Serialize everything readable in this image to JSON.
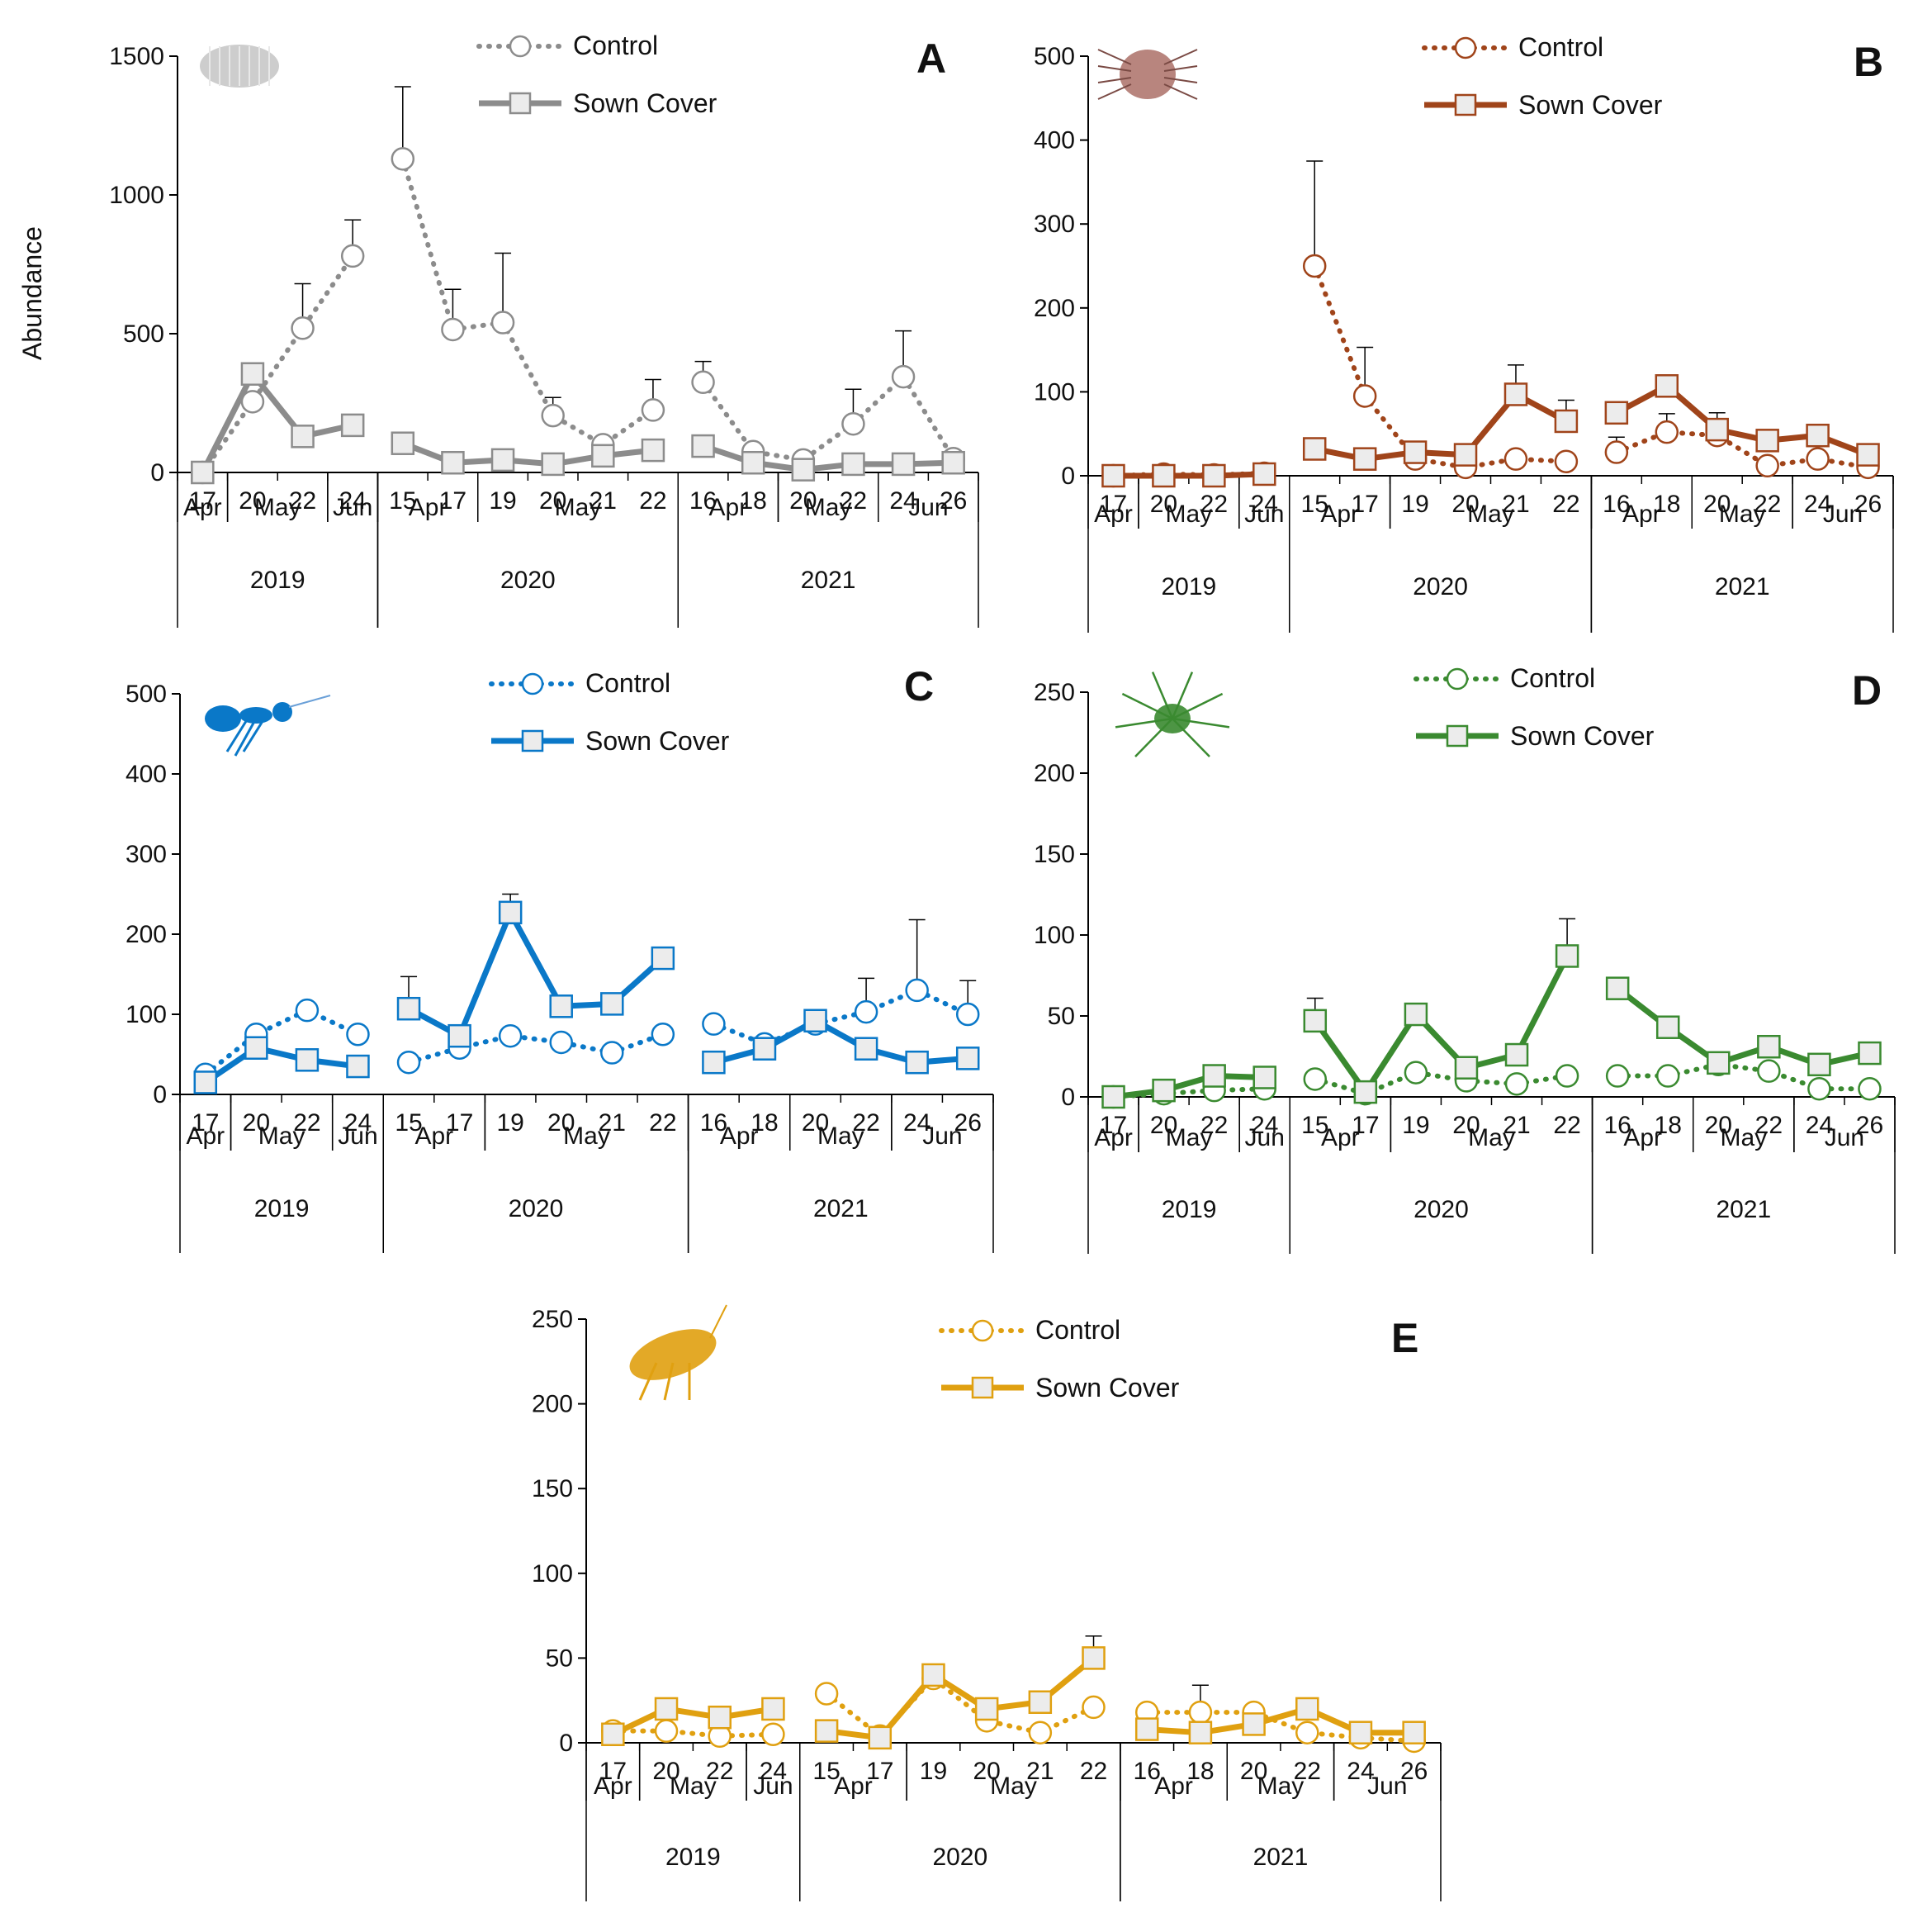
{
  "figure": {
    "ylabel": "Abundance",
    "legend": {
      "control": "Control",
      "sown": "Sown Cover"
    },
    "x_days": [
      "17",
      "20",
      "22",
      "24",
      "15",
      "17",
      "19",
      "20",
      "21",
      "22",
      "16",
      "18",
      "20",
      "22",
      "24",
      "26"
    ],
    "month_groups": [
      {
        "label": "Apr",
        "start": 0,
        "end": 0
      },
      {
        "label": "May",
        "start": 1,
        "end": 2
      },
      {
        "label": "Jun",
        "start": 3,
        "end": 3
      },
      {
        "label": "Apr",
        "start": 4,
        "end": 5
      },
      {
        "label": "May",
        "start": 6,
        "end": 9
      },
      {
        "label": "Apr",
        "start": 10,
        "end": 11
      },
      {
        "label": "May",
        "start": 12,
        "end": 13
      },
      {
        "label": "Jun",
        "start": 14,
        "end": 15
      }
    ],
    "year_groups": [
      {
        "label": "2019",
        "start": 0,
        "end": 3
      },
      {
        "label": "2020",
        "start": 4,
        "end": 9
      },
      {
        "label": "2021",
        "start": 10,
        "end": 15
      }
    ],
    "segments": [
      [
        0,
        3
      ],
      [
        4,
        9
      ],
      [
        10,
        15
      ]
    ]
  },
  "chart_data": [
    {
      "panel": "A",
      "type": "line",
      "color": "#8c8c8c",
      "organism": "springtail",
      "ylim": [
        0,
        1500
      ],
      "yticks": [
        0,
        500,
        1000,
        1500
      ],
      "series": [
        {
          "name": "Control",
          "style": "dotted-circle",
          "values": [
            0,
            255,
            520,
            780,
            1130,
            515,
            540,
            205,
            100,
            225,
            325,
            75,
            45,
            175,
            345,
            50
          ],
          "error": [
            0,
            0,
            160,
            130,
            260,
            145,
            250,
            65,
            0,
            110,
            75,
            0,
            0,
            125,
            165,
            0
          ]
        },
        {
          "name": "Sown Cover",
          "style": "solid-square",
          "values": [
            0,
            355,
            130,
            170,
            105,
            35,
            45,
            30,
            60,
            80,
            95,
            35,
            10,
            30,
            30,
            35
          ],
          "error": [
            0,
            40,
            0,
            0,
            0,
            0,
            0,
            0,
            0,
            0,
            0,
            0,
            0,
            0,
            0,
            0
          ]
        }
      ]
    },
    {
      "panel": "B",
      "type": "line",
      "color": "#a0441a",
      "organism": "mite",
      "ylim": [
        0,
        500
      ],
      "yticks": [
        0,
        100,
        200,
        300,
        400,
        500
      ],
      "series": [
        {
          "name": "Control",
          "style": "dotted-circle",
          "values": [
            0,
            2,
            1,
            3,
            250,
            95,
            20,
            10,
            20,
            17,
            28,
            52,
            48,
            12,
            20,
            10
          ],
          "error": [
            0,
            0,
            0,
            0,
            125,
            58,
            0,
            0,
            0,
            0,
            18,
            22,
            0,
            0,
            0,
            0
          ]
        },
        {
          "name": "Sown Cover",
          "style": "solid-square",
          "values": [
            0,
            0,
            0,
            2,
            32,
            20,
            28,
            25,
            97,
            65,
            75,
            107,
            55,
            42,
            48,
            25
          ],
          "error": [
            0,
            0,
            0,
            0,
            0,
            0,
            0,
            0,
            35,
            25,
            0,
            0,
            20,
            0,
            0,
            0
          ]
        }
      ]
    },
    {
      "panel": "C",
      "type": "line",
      "color": "#0a78c8",
      "organism": "ant",
      "ylim": [
        0,
        500
      ],
      "yticks": [
        0,
        100,
        200,
        300,
        400,
        500
      ],
      "series": [
        {
          "name": "Control",
          "style": "dotted-circle",
          "values": [
            25,
            75,
            105,
            75,
            40,
            58,
            73,
            65,
            52,
            75,
            88,
            63,
            88,
            103,
            130,
            100
          ],
          "error": [
            0,
            0,
            0,
            0,
            0,
            0,
            0,
            0,
            0,
            0,
            0,
            0,
            0,
            42,
            88,
            42
          ]
        },
        {
          "name": "Sown Cover",
          "style": "solid-square",
          "values": [
            15,
            58,
            43,
            35,
            107,
            73,
            227,
            110,
            113,
            170,
            40,
            57,
            92,
            57,
            40,
            45
          ],
          "error": [
            0,
            0,
            0,
            0,
            40,
            0,
            23,
            0,
            0,
            0,
            0,
            0,
            0,
            0,
            0,
            0
          ]
        }
      ]
    },
    {
      "panel": "D",
      "type": "line",
      "color": "#3a8a30",
      "organism": "spider",
      "ylim": [
        0,
        250
      ],
      "yticks": [
        0,
        50,
        100,
        150,
        200,
        250
      ],
      "series": [
        {
          "name": "Control",
          "style": "dotted-circle",
          "values": [
            0,
            2,
            4,
            5,
            11,
            2,
            15,
            10,
            8,
            13,
            13,
            13,
            20,
            16,
            5,
            5
          ],
          "error": [
            0,
            0,
            0,
            0,
            0,
            0,
            0,
            0,
            0,
            0,
            0,
            0,
            0,
            0,
            0,
            0
          ]
        },
        {
          "name": "Sown Cover",
          "style": "solid-square",
          "values": [
            0,
            4,
            13,
            12,
            47,
            3,
            51,
            18,
            26,
            87,
            67,
            43,
            21,
            31,
            20,
            27
          ],
          "error": [
            0,
            0,
            0,
            0,
            14,
            0,
            0,
            0,
            0,
            23,
            0,
            0,
            0,
            0,
            0,
            0
          ]
        }
      ]
    },
    {
      "panel": "E",
      "type": "line",
      "color": "#e0a010",
      "organism": "beetle",
      "ylim": [
        0,
        250
      ],
      "yticks": [
        0,
        50,
        100,
        150,
        200,
        250
      ],
      "series": [
        {
          "name": "Control",
          "style": "dotted-circle",
          "values": [
            7,
            7,
            4,
            5,
            29,
            4,
            38,
            13,
            6,
            21,
            18,
            18,
            18,
            6,
            3,
            1
          ],
          "error": [
            0,
            0,
            0,
            0,
            0,
            0,
            0,
            0,
            0,
            0,
            0,
            16,
            0,
            0,
            0,
            0
          ]
        },
        {
          "name": "Sown Cover",
          "style": "solid-square",
          "values": [
            5,
            20,
            15,
            20,
            7,
            3,
            40,
            20,
            24,
            50,
            8,
            6,
            11,
            20,
            6,
            6
          ],
          "error": [
            0,
            0,
            0,
            0,
            0,
            0,
            0,
            0,
            0,
            13,
            0,
            0,
            0,
            0,
            0,
            0
          ]
        }
      ]
    }
  ]
}
